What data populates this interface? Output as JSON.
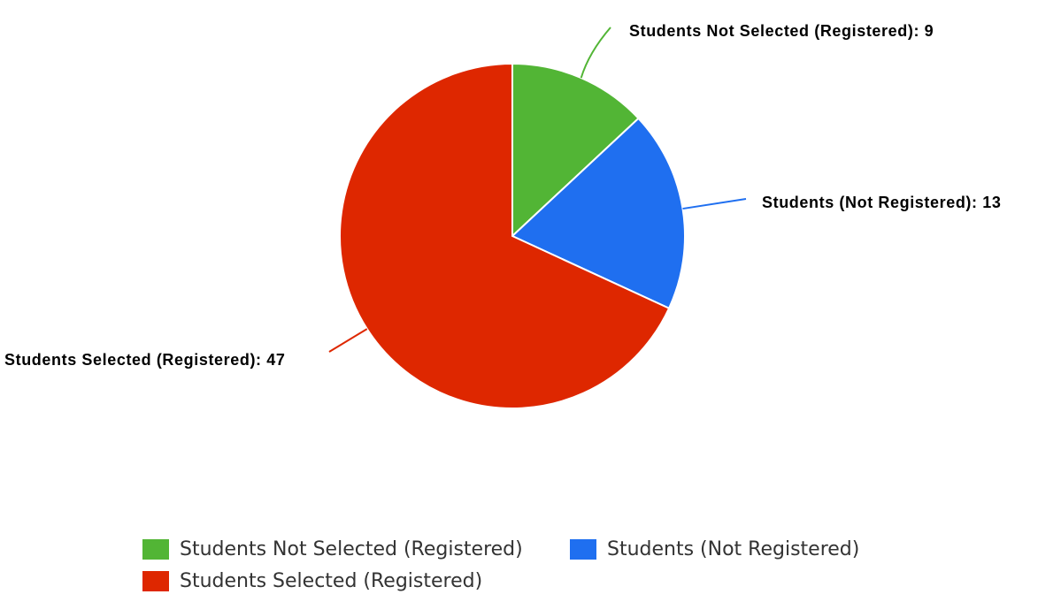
{
  "chart_data": {
    "type": "pie",
    "title": "",
    "slices": [
      {
        "label": "Students Not Selected (Registered)",
        "value": 9,
        "color": "#52b535"
      },
      {
        "label": "Students (Not Registered)",
        "value": 13,
        "color": "#1f6ff0"
      },
      {
        "label": "Students Selected (Registered)",
        "value": 47,
        "color": "#de2700"
      }
    ],
    "data_labels": [
      "Students Not Selected (Registered): 9",
      "Students (Not Registered): 13",
      "Students Selected (Registered): 47"
    ],
    "start_angle_deg": 0,
    "direction": "clockwise",
    "legend": {
      "position": "bottom",
      "entries": [
        "Students Not Selected (Registered)",
        "Students (Not Registered)",
        "Students Selected (Registered)"
      ]
    }
  }
}
